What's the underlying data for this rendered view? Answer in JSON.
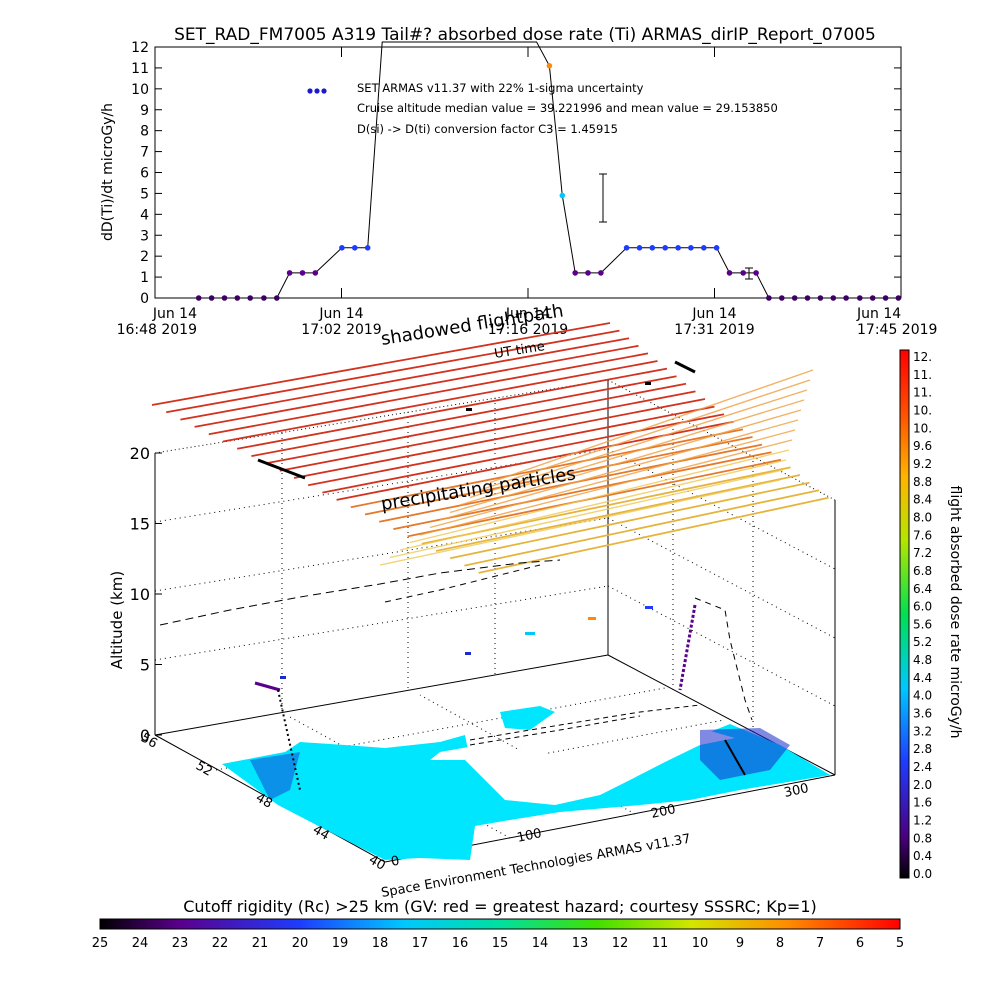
{
  "title": "SET_RAD_FM7005   A319 Tail#? absorbed dose rate (Ti) ARMAS_dirIP_Report_07005",
  "chart_data": [
    {
      "type": "scatter",
      "ylabel": "dD(Ti)/dt microGy/h",
      "xlabel": "UT time",
      "ylim": [
        0,
        12
      ],
      "yticks": [
        "0",
        "1",
        "2",
        "3",
        "4",
        "5",
        "6",
        "7",
        "8",
        "9",
        "10",
        "11",
        "12"
      ],
      "xtick_labels": [
        {
          "day": "Jun 14",
          "time": "16:48 2019"
        },
        {
          "day": "Jun 14",
          "time": "17:02 2019"
        },
        {
          "day": "Jun 14",
          "time": "17:16 2019"
        },
        {
          "day": "Jun 14",
          "time": "17:31 2019"
        },
        {
          "day": "Jun 14",
          "time": "17:45 2019"
        }
      ],
      "legend": [
        "SET ARMAS v11.37 with 22% 1-sigma uncertainty",
        "Cruise altitude median value = 39.221996 and mean value = 29.153850",
        "D(si) -> D(ti) conversion factor C3 = 1.45915"
      ],
      "series": [
        {
          "points": [
            {
              "t": 17.31,
              "v": 0.0
            },
            {
              "t": 17.46,
              "v": 0.0
            },
            {
              "t": 17.61,
              "v": 0.0
            },
            {
              "t": 17.76,
              "v": 0.0
            },
            {
              "t": 17.91,
              "v": 0.0
            },
            {
              "t": 18.07,
              "v": 0.0
            },
            {
              "t": 18.22,
              "v": 0.0
            },
            {
              "t": 18.37,
              "v": 1.2
            },
            {
              "t": 18.52,
              "v": 1.2
            },
            {
              "t": 18.67,
              "v": 1.2
            },
            {
              "t": 18.98,
              "v": 2.4
            },
            {
              "t": 19.13,
              "v": 2.4
            },
            {
              "t": 19.28,
              "v": 2.4
            },
            {
              "t": 21.4,
              "v": 11.1
            },
            {
              "t": 21.55,
              "v": 4.9
            },
            {
              "t": 21.7,
              "v": 1.2
            },
            {
              "t": 21.85,
              "v": 1.2
            },
            {
              "t": 22.0,
              "v": 1.2
            },
            {
              "t": 22.3,
              "v": 2.4
            },
            {
              "t": 22.45,
              "v": 2.4
            },
            {
              "t": 22.6,
              "v": 2.4
            },
            {
              "t": 22.75,
              "v": 2.4
            },
            {
              "t": 22.9,
              "v": 2.4
            },
            {
              "t": 23.05,
              "v": 2.4
            },
            {
              "t": 23.2,
              "v": 2.4
            },
            {
              "t": 23.35,
              "v": 2.4
            },
            {
              "t": 23.5,
              "v": 1.2
            },
            {
              "t": 23.66,
              "v": 1.2
            },
            {
              "t": 23.81,
              "v": 1.2
            },
            {
              "t": 23.96,
              "v": 0.0
            },
            {
              "t": 24.11,
              "v": 0.0
            },
            {
              "t": 24.26,
              "v": 0.0
            },
            {
              "t": 24.41,
              "v": 0.0
            },
            {
              "t": 24.56,
              "v": 0.0
            },
            {
              "t": 24.71,
              "v": 0.0
            },
            {
              "t": 24.86,
              "v": 0.0
            },
            {
              "t": 25.02,
              "v": 0.0
            },
            {
              "t": 25.17,
              "v": 0.0
            },
            {
              "t": 25.32,
              "v": 0.0
            },
            {
              "t": 25.47,
              "v": 0.0
            }
          ]
        }
      ]
    },
    {
      "type": "heatmap",
      "ylabel": "Altitude (km)",
      "zticks": [
        "0",
        "5",
        "10",
        "15",
        "20"
      ],
      "lat_ticks": [
        "56",
        "52",
        "48",
        "44",
        "40"
      ],
      "lon_ticks": [
        "0",
        "100",
        "200",
        "300"
      ],
      "annotations": {
        "shadowed": "shadowed flightpath",
        "precip": "precipitating particles",
        "credit": "Space Environment Technologies ARMAS v11.37"
      },
      "colorbar_label": "flight absorbed dose rate microGy/h",
      "colorbar_ticks": [
        "12.",
        "11.",
        "11.",
        "10.",
        "10.",
        "9.6",
        "9.2",
        "8.8",
        "8.4",
        "8.0",
        "7.6",
        "7.2",
        "6.8",
        "6.4",
        "6.0",
        "5.6",
        "5.2",
        "4.8",
        "4.4",
        "4.0",
        "3.6",
        "3.2",
        "2.8",
        "2.4",
        "2.0",
        "1.6",
        "1.2",
        "0.8",
        "0.4",
        "0.0"
      ]
    }
  ],
  "rigidity": {
    "label": "Cutoff rigidity (Rc) >25 km (GV: red = greatest hazard; courtesy SSSRC; Kp=1)",
    "ticks": [
      "25",
      "24",
      "23",
      "22",
      "21",
      "20",
      "19",
      "18",
      "17",
      "16",
      "15",
      "14",
      "13",
      "12",
      "11",
      "10",
      "9",
      "8",
      "7",
      "6",
      "5"
    ]
  },
  "colors": {
    "series_dot": "#1a1ad0",
    "sea": "#00e6ff",
    "flightpath": "#000000"
  }
}
